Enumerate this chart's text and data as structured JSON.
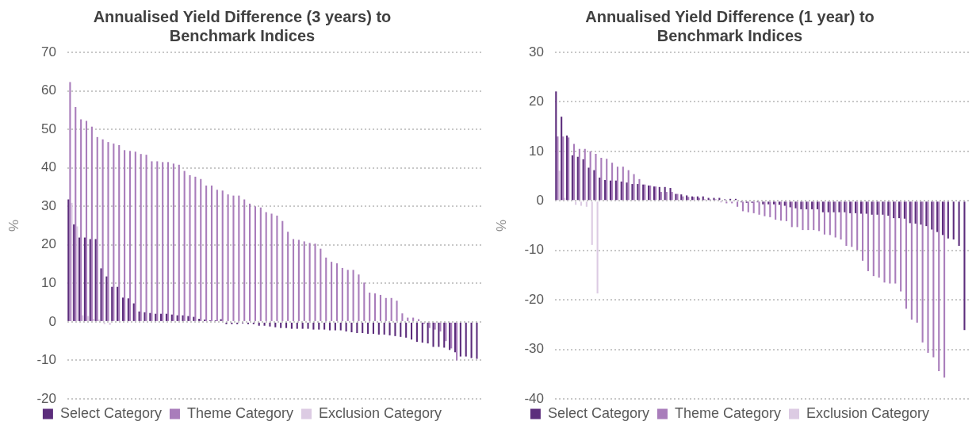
{
  "chart_data": [
    {
      "type": "bar",
      "title": "Annualised Yield Difference (3 years) to Benchmark Indices",
      "ylabel": "%",
      "categories": [
        null,
        null,
        null,
        null,
        null,
        null,
        null,
        null,
        null,
        null,
        null,
        null,
        null,
        null,
        null,
        null,
        null,
        null,
        null,
        null,
        null,
        null,
        null,
        null,
        null,
        null,
        null,
        null,
        null,
        null,
        null,
        null,
        null,
        null,
        null,
        null,
        null,
        null,
        null,
        null,
        null,
        null,
        null,
        null,
        null,
        null,
        null,
        null,
        null,
        null,
        null,
        null,
        null,
        null,
        null,
        null,
        null,
        null,
        null,
        null,
        null,
        null,
        null,
        null,
        null,
        null,
        null,
        null,
        null,
        null,
        null,
        null,
        null,
        null,
        null,
        null
      ],
      "series": [
        {
          "name": "Select Category",
          "color": "#5c2d7c",
          "values": [
            31.8,
            25.3,
            21.9,
            21.9,
            21.5,
            21.5,
            13.9,
            11.8,
            9.1,
            9.1,
            6.3,
            6.1,
            4.8,
            2.7,
            2.5,
            2.3,
            2.1,
            2.1,
            2.1,
            1.9,
            1.7,
            1.7,
            1.5,
            1.3,
            0.8,
            0.6,
            0.4,
            0.4,
            0.7,
            -0.6,
            -0.6,
            -0.6,
            -0.4,
            -0.6,
            -0.6,
            -1.0,
            -1.0,
            -1.2,
            -1.4,
            -1.6,
            -1.6,
            -1.8,
            -1.8,
            -1.8,
            -1.8,
            -2.0,
            -2.0,
            -2.0,
            -2.2,
            -2.2,
            -2.2,
            -2.5,
            -2.7,
            -2.9,
            -2.9,
            -3.1,
            -3.1,
            -3.3,
            -3.3,
            -3.5,
            -3.7,
            -3.9,
            -4.1,
            -4.6,
            -5.2,
            -5.4,
            -5.6,
            -6.5,
            -6.5,
            -6.7,
            -7.3,
            -7.9,
            -9.0,
            -9.0,
            -9.4,
            -9.6
          ]
        },
        {
          "name": "Theme Category",
          "color": "#a97dbb",
          "values": [
            62.3,
            55.8,
            52.6,
            52.2,
            50.7,
            48.0,
            47.4,
            46.7,
            46.3,
            45.9,
            44.6,
            44.4,
            44.2,
            43.6,
            43.4,
            41.7,
            41.7,
            41.5,
            41.5,
            41.1,
            40.8,
            39.2,
            38.1,
            37.7,
            37.1,
            35.4,
            35.4,
            34.3,
            34.1,
            33.1,
            32.8,
            32.8,
            31.8,
            30.7,
            30.0,
            29.7,
            28.5,
            28.1,
            27.6,
            26.2,
            23.4,
            21.5,
            21.3,
            20.9,
            20.5,
            20.3,
            19.0,
            16.7,
            15.6,
            15.2,
            14.0,
            13.5,
            13.5,
            12.3,
            10.2,
            7.6,
            7.4,
            7.0,
            6.2,
            6.2,
            5.5,
            2.2,
            1.1,
            1.1,
            0.7,
            -0.5,
            -1.6,
            -2.0,
            -2.5,
            -5.0,
            -6.9,
            -10.0,
            null,
            null,
            null,
            null
          ]
        },
        {
          "name": "Exclusion Category",
          "color": "#dccbe3",
          "values": [
            30.9,
            24.8,
            1.7,
            1.5,
            0.8,
            0.6,
            -0.6,
            -0.8,
            null,
            null,
            null,
            null,
            null,
            null,
            null,
            null,
            null,
            null,
            null,
            null,
            null,
            null,
            null,
            null,
            null,
            null,
            null,
            null,
            null,
            null,
            null,
            null,
            null,
            null,
            null,
            null,
            null,
            null,
            null,
            null,
            null,
            null,
            null,
            null,
            null,
            null,
            null,
            null,
            null,
            null,
            null,
            null,
            null,
            null,
            null,
            null,
            null,
            null,
            null,
            null,
            null,
            null,
            null,
            null,
            null,
            null,
            null,
            null,
            null,
            null,
            null,
            null,
            null,
            null,
            null,
            null
          ]
        }
      ],
      "ylim": [
        -20,
        70
      ],
      "yticks": [
        -20,
        -10,
        0,
        10,
        20,
        30,
        40,
        50,
        60,
        70
      ],
      "grid": "y",
      "legend": "bottom",
      "tick_labels": "y"
    },
    {
      "type": "bar",
      "title": "Annualised Yield Difference (1 year) to Benchmark Indices",
      "ylabel": "%",
      "categories": [
        null,
        null,
        null,
        null,
        null,
        null,
        null,
        null,
        null,
        null,
        null,
        null,
        null,
        null,
        null,
        null,
        null,
        null,
        null,
        null,
        null,
        null,
        null,
        null,
        null,
        null,
        null,
        null,
        null,
        null,
        null,
        null,
        null,
        null,
        null,
        null,
        null,
        null,
        null,
        null,
        null,
        null,
        null,
        null,
        null,
        null,
        null,
        null,
        null,
        null,
        null,
        null,
        null,
        null,
        null,
        null,
        null,
        null,
        null,
        null,
        null,
        null,
        null,
        null,
        null,
        null,
        null,
        null,
        null,
        null,
        null,
        null,
        null,
        null,
        null,
        null
      ],
      "series": [
        {
          "name": "Select Category",
          "color": "#5c2d7c",
          "values": [
            22.1,
            17.0,
            13.2,
            9.2,
            8.9,
            8.4,
            6.7,
            6.2,
            4.7,
            4.2,
            4.1,
            4.1,
            3.9,
            3.7,
            3.4,
            3.4,
            3.3,
            3.1,
            2.9,
            2.8,
            2.8,
            2.6,
            1.4,
            1.3,
            1.1,
            0.9,
            0.9,
            0.9,
            0.6,
            0.6,
            0.6,
            0.3,
            0.4,
            0.4,
            -0.3,
            -0.4,
            -0.4,
            -0.3,
            -0.7,
            -0.7,
            -0.7,
            -0.8,
            -1.0,
            -1.3,
            -1.5,
            -1.7,
            -1.7,
            -1.7,
            -1.7,
            -2.3,
            -2.3,
            -2.3,
            -2.3,
            -2.3,
            -2.5,
            -2.5,
            -2.6,
            -2.6,
            -2.8,
            -2.8,
            -2.8,
            -3.0,
            -3.5,
            -3.5,
            -3.6,
            -4.5,
            -4.6,
            -4.8,
            -5.1,
            -5.8,
            -6.3,
            -6.9,
            -7.6,
            -7.8,
            -9.1,
            -26.1
          ]
        },
        {
          "name": "Theme Category",
          "color": "#a97dbb",
          "values": [
            13.0,
            13.0,
            12.8,
            11.5,
            10.5,
            10.5,
            10.0,
            9.5,
            8.7,
            8.5,
            7.7,
            6.9,
            6.9,
            6.2,
            5.4,
            4.4,
            3.3,
            3.1,
            2.9,
            1.8,
            1.8,
            1.8,
            1.4,
            0.9,
            0.8,
            0.8,
            0.6,
            0.3,
            0.3,
            0.3,
            -0.3,
            -0.5,
            -0.5,
            -1.2,
            -2.1,
            -2.3,
            -2.5,
            -2.8,
            -3.1,
            -3.3,
            -3.8,
            -4.0,
            -4.1,
            -5.3,
            -5.3,
            -5.9,
            -5.9,
            -5.9,
            -6.1,
            -6.8,
            -6.9,
            -7.4,
            -7.8,
            -9.1,
            -9.3,
            -9.9,
            -12.1,
            -14.2,
            -15.2,
            -15.5,
            -16.5,
            -16.7,
            -16.7,
            -18.3,
            -21.8,
            -24.0,
            -24.6,
            -28.6,
            -30.7,
            -31.6,
            -34.4,
            -35.7,
            null,
            null,
            null,
            null
          ]
        },
        {
          "name": "Exclusion Category",
          "color": "#dccbe3",
          "values": [
            6.1,
            0.6,
            null,
            -0.8,
            -1.0,
            -1.2,
            -8.9,
            -18.7,
            null,
            null,
            null,
            null,
            null,
            null,
            null,
            null,
            null,
            null,
            null,
            null,
            null,
            null,
            null,
            null,
            null,
            null,
            null,
            null,
            null,
            null,
            null,
            null,
            null,
            null,
            null,
            null,
            null,
            null,
            null,
            null,
            null,
            null,
            null,
            null,
            null,
            null,
            null,
            null,
            null,
            null,
            null,
            null,
            null,
            null,
            null,
            null,
            null,
            null,
            null,
            null,
            null,
            null,
            null,
            null,
            null,
            null,
            null,
            null,
            null,
            null,
            null,
            null,
            null,
            null,
            null,
            null
          ]
        }
      ],
      "ylim": [
        -40,
        30
      ],
      "yticks": [
        -40,
        -30,
        -20,
        -10,
        0,
        10,
        20,
        30
      ],
      "grid": "y",
      "legend": "bottom",
      "tick_labels": "y"
    }
  ]
}
